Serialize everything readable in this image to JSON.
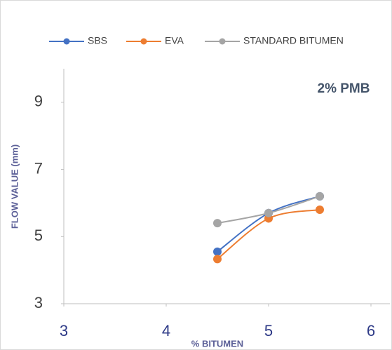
{
  "chart_data": {
    "type": "line",
    "annotation": "2% PMB",
    "x_label": "% BITUMEN",
    "y_label": "FLOW VALUE (mm)",
    "x": [
      4.5,
      5,
      5.5
    ],
    "series": [
      {
        "name": "SBS",
        "color": "#4472c4",
        "values": [
          4.55,
          5.7,
          6.2
        ]
      },
      {
        "name": "EVA",
        "color": "#ed7d31",
        "values": [
          4.33,
          5.54,
          5.8
        ]
      },
      {
        "name": "STANDARD BITUMEN",
        "color": "#a5a5a5",
        "values": [
          5.4,
          5.7,
          6.2
        ]
      }
    ],
    "xlim": [
      3,
      6
    ],
    "xticks": [
      3,
      4,
      5,
      6
    ],
    "ylim": [
      3,
      10
    ],
    "yticks": [
      3,
      5,
      7,
      9
    ],
    "smooth": true,
    "legend": "top"
  }
}
